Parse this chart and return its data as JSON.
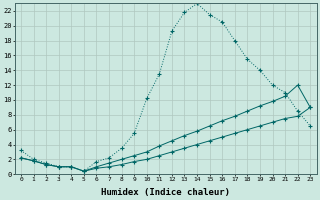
{
  "xlabel": "Humidex (Indice chaleur)",
  "background_color": "#cce8e0",
  "grid_color": "#b0c8c0",
  "line_color": "#006666",
  "xlim": [
    -0.5,
    23.5
  ],
  "ylim": [
    0,
    23
  ],
  "xticks": [
    0,
    1,
    2,
    3,
    4,
    5,
    6,
    7,
    8,
    9,
    10,
    11,
    12,
    13,
    14,
    15,
    16,
    17,
    18,
    19,
    20,
    21,
    22,
    23
  ],
  "yticks": [
    0,
    2,
    4,
    6,
    8,
    10,
    12,
    14,
    16,
    18,
    20,
    22
  ],
  "line1_x": [
    0,
    1,
    2,
    3,
    4,
    5,
    6,
    7,
    8,
    9,
    10,
    11,
    12,
    13,
    14,
    15,
    16,
    17,
    18,
    19,
    20,
    21,
    22,
    23
  ],
  "line1_y": [
    3.2,
    2.0,
    1.5,
    1.0,
    1.0,
    0.4,
    1.7,
    2.2,
    3.5,
    5.5,
    10.2,
    13.5,
    19.3,
    21.8,
    23.0,
    21.5,
    20.5,
    18.0,
    15.5,
    14.0,
    12.0,
    11.0,
    8.5,
    6.5
  ],
  "line2_x": [
    0,
    1,
    2,
    3,
    4,
    5,
    6,
    7,
    8,
    9,
    10,
    11,
    12,
    13,
    14,
    15,
    16,
    17,
    18,
    19,
    20,
    21,
    22,
    23
  ],
  "line2_y": [
    2.2,
    1.8,
    1.3,
    1.0,
    1.0,
    0.4,
    1.0,
    1.5,
    2.0,
    2.5,
    3.0,
    3.8,
    4.5,
    5.2,
    5.8,
    6.5,
    7.2,
    7.8,
    8.5,
    9.2,
    9.8,
    10.5,
    12.0,
    9.0
  ],
  "line3_x": [
    0,
    1,
    2,
    3,
    4,
    5,
    6,
    7,
    8,
    9,
    10,
    11,
    12,
    13,
    14,
    15,
    16,
    17,
    18,
    19,
    20,
    21,
    22,
    23
  ],
  "line3_y": [
    2.2,
    1.8,
    1.3,
    1.0,
    1.0,
    0.4,
    0.8,
    1.0,
    1.3,
    1.7,
    2.0,
    2.5,
    3.0,
    3.5,
    4.0,
    4.5,
    5.0,
    5.5,
    6.0,
    6.5,
    7.0,
    7.5,
    7.8,
    9.0
  ]
}
